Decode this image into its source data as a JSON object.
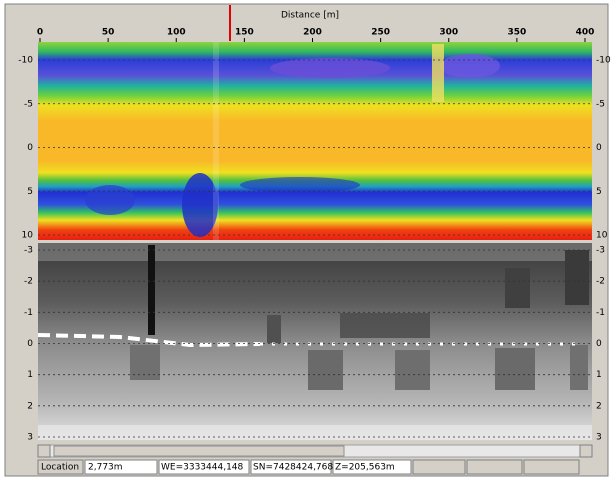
{
  "header": {
    "axis_title": "Distance [m]",
    "x_ticks": [
      "0",
      "50",
      "100",
      "150",
      "200",
      "250",
      "300",
      "350",
      "400"
    ]
  },
  "top_panel": {
    "y_ticks": [
      "-10",
      "-5",
      "0",
      "5",
      "10"
    ]
  },
  "bottom_panel": {
    "y_ticks": [
      "-3",
      "-2",
      "-1",
      "0",
      "1",
      "2",
      "3"
    ]
  },
  "status_bar": {
    "location_label": "Location",
    "location": "2,773m",
    "we": "WE=3333444,148",
    "sn": "SN=7428424,768",
    "z": "Z=205,563m"
  }
}
